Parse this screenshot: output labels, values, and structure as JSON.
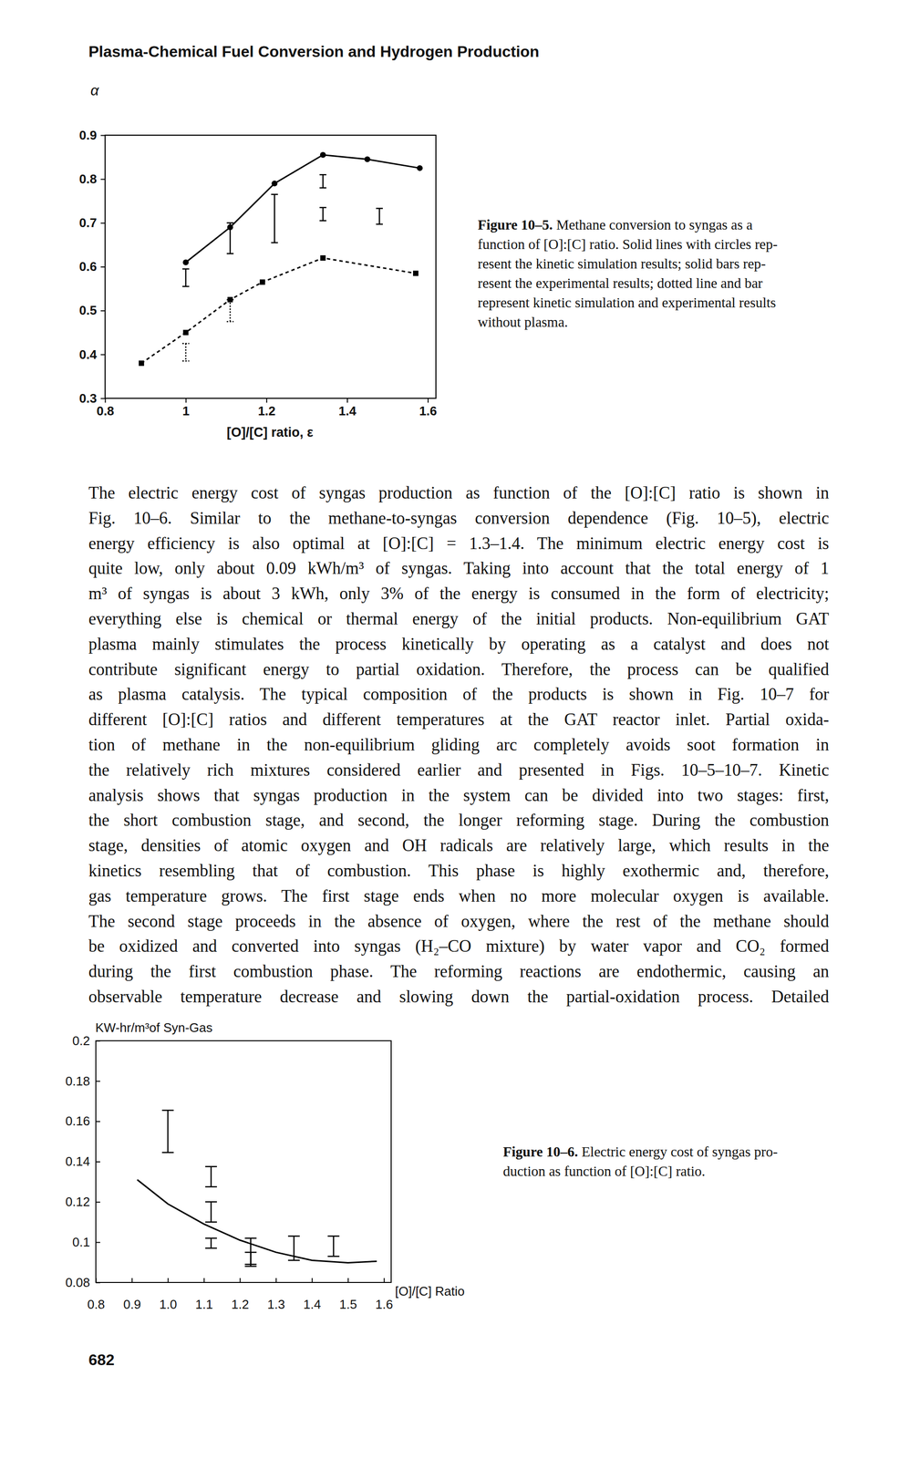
{
  "header": "Plasma-Chemical Fuel Conversion and Hydrogen Production",
  "chart_data": [
    {
      "type": "line",
      "ylabel": "α",
      "xlabel": "[O]/[C] ratio, ε",
      "xlim": [
        0.8,
        1.62
      ],
      "xticks": [
        0.8,
        1,
        1.2,
        1.4,
        1.6
      ],
      "ylim": [
        0.3,
        0.9
      ],
      "yticks": [
        0.3,
        0.4,
        0.5,
        0.6,
        0.7,
        0.8,
        0.9
      ],
      "series": [
        {
          "type": "line",
          "line_style": "solid",
          "marker": "circle",
          "color": "#000000",
          "x": [
            1.0,
            1.11,
            1.22,
            1.34,
            1.45,
            1.58
          ],
          "values": [
            0.61,
            0.69,
            0.79,
            0.855,
            0.845,
            0.825
          ]
        },
        {
          "type": "line",
          "line_style": "dotted",
          "marker": "square",
          "color": "#000000",
          "x": [
            0.89,
            1.0,
            1.11,
            1.19,
            1.34,
            1.57
          ],
          "values": [
            0.38,
            0.45,
            0.525,
            0.565,
            0.62,
            0.585
          ]
        },
        {
          "type": "errorbar",
          "line_style": "solid",
          "color": "#000000",
          "x": [
            1.0,
            1.11,
            1.22,
            1.34,
            1.34,
            1.48
          ],
          "values": [
            0.575,
            0.665,
            0.71,
            0.795,
            0.72,
            0.715
          ],
          "errors": [
            0.02,
            0.035,
            0.055,
            0.015,
            0.015,
            0.018
          ]
        },
        {
          "type": "errorbar",
          "line_style": "dotted",
          "color": "#000000",
          "x": [
            1.0,
            1.11
          ],
          "values": [
            0.405,
            0.5
          ],
          "errors": [
            0.02,
            0.025
          ]
        }
      ]
    },
    {
      "type": "line",
      "ylabel": "KW-hr/m³of Syn-Gas",
      "xlabel": "[O]/[C] Ratio",
      "xlim": [
        0.8,
        1.62
      ],
      "xticks": [
        0.8,
        0.9,
        {
          "value": 1,
          "label": "1.0"
        },
        1.1,
        1.2,
        1.3,
        1.4,
        1.5,
        1.6
      ],
      "ylim": [
        0.08,
        0.2
      ],
      "yticks": [
        0.08,
        0.1,
        0.12,
        0.14,
        0.16,
        0.18,
        0.2
      ],
      "series": [
        {
          "type": "line",
          "line_style": "solid",
          "marker": "none",
          "color": "#000000",
          "x": [
            0.915,
            1.0,
            1.1,
            1.2,
            1.3,
            1.4,
            1.5,
            1.58
          ],
          "values": [
            0.131,
            0.119,
            0.109,
            0.101,
            0.095,
            0.091,
            0.0898,
            0.0905
          ]
        },
        {
          "type": "errorbar",
          "line_style": "solid",
          "color": "#000000",
          "x": [
            1.0,
            1.12,
            1.12,
            1.12,
            1.23,
            1.23,
            1.35,
            1.46
          ],
          "values": [
            0.155,
            0.1325,
            0.115,
            0.0995,
            0.095,
            0.092,
            0.097,
            0.098
          ],
          "errors": [
            0.0105,
            0.005,
            0.005,
            0.0025,
            0.007,
            0.003,
            0.006,
            0.005
          ]
        }
      ]
    }
  ],
  "captions": [
    {
      "label": "Figure 10–5.",
      "lines": [
        "Methane conversion to syngas as a",
        "function of [O]:[C] ratio. Solid lines with circles rep-",
        "resent the kinetic simulation results; solid bars rep-",
        "resent the experimental results; dotted line and bar",
        "represent kinetic simulation and experimental results",
        "without plasma."
      ]
    },
    {
      "label": "Figure 10–6.",
      "lines": [
        "Electric energy cost of syngas pro-",
        "duction as function of [O]:[C] ratio."
      ]
    }
  ],
  "body": {
    "lines": [
      "The electric energy cost of syngas production as function of the [O]:[C] ratio is shown in",
      "Fig. 10–6. Similar to the methane-to-syngas conversion dependence (Fig. 10–5), electric",
      "energy efficiency is also optimal at [O]:[C] = 1.3–1.4. The minimum electric energy cost is",
      "quite low, only about 0.09 kWh/m³ of syngas. Taking into account that the total energy of 1",
      "m³ of syngas is about 3 kWh, only 3% of the energy is consumed in the form of electricity;",
      "everything else is chemical or thermal energy of the initial products. Non-equilibrium GAT",
      "plasma mainly stimulates the process kinetically by operating as a catalyst and does not",
      "contribute significant energy to partial oxidation. Therefore, the process can be qualified",
      "as plasma catalysis. The typical composition of the products is shown in Fig. 10–7 for",
      "different [O]:[C] ratios and different temperatures at the GAT reactor inlet. Partial oxida-",
      "tion of methane in the non-equilibrium gliding arc completely avoids soot formation in",
      "the relatively rich mixtures considered earlier and presented in Figs. 10–5–10–7. Kinetic",
      "analysis shows that syngas production in the system can be divided into two stages: first,",
      "the short combustion stage, and second, the longer reforming stage. During the combustion",
      "stage, densities of atomic oxygen and OH radicals are relatively large, which results in the",
      "kinetics resembling that of combustion. This phase is highly exothermic and, therefore,",
      "gas temperature grows. The first stage ends when no more molecular oxygen is available.",
      "The second stage proceeds in the absence of oxygen, where the rest of the methane should",
      "be oxidized and converted into syngas (H₂–CO mixture) by water vapor and CO₂ formed",
      "during the first combustion phase. The reforming reactions are endothermic, causing an",
      "observable temperature decrease and slowing down the partial-oxidation process. Detailed"
    ]
  },
  "page_number": 682
}
